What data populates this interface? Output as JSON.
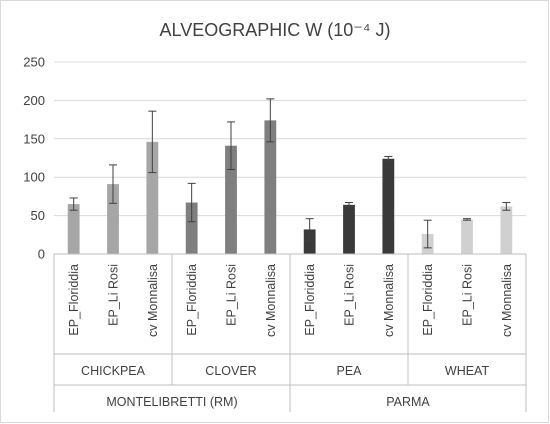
{
  "chart_data": {
    "type": "bar",
    "title": "ALVEOGRAPHIC W (10⁻⁴ J)",
    "ylim": [
      0,
      250
    ],
    "yticks": [
      0,
      50,
      100,
      150,
      200,
      250
    ],
    "grid": true,
    "legend": "none",
    "locations": [
      {
        "name": "MONTELIBRETTI (RM)",
        "species": [
          "CHICKPEA",
          "CLOVER"
        ]
      },
      {
        "name": "PARMA",
        "species": [
          "PEA",
          "WHEAT"
        ]
      }
    ],
    "groups": [
      {
        "species": "CHICKPEA",
        "color": "#a6a6a6",
        "bars": [
          {
            "label": "EP_Floriddia",
            "value": 65,
            "err_low": 57,
            "err_high": 73
          },
          {
            "label": "EP_Li Rosi",
            "value": 91,
            "err_low": 66,
            "err_high": 116
          },
          {
            "label": "cv Monnalisa",
            "value": 146,
            "err_low": 106,
            "err_high": 186
          }
        ]
      },
      {
        "species": "CLOVER",
        "color": "#7f7f7f",
        "bars": [
          {
            "label": "EP_Floriddia",
            "value": 67,
            "err_low": 42,
            "err_high": 92
          },
          {
            "label": "EP_Li Rosi",
            "value": 141,
            "err_low": 110,
            "err_high": 172
          },
          {
            "label": "cv Monnalisa",
            "value": 174,
            "err_low": 146,
            "err_high": 202
          }
        ]
      },
      {
        "species": "PEA",
        "color": "#3a3a3a",
        "bars": [
          {
            "label": "EP_Floriddia",
            "value": 32,
            "err_low": 18,
            "err_high": 46
          },
          {
            "label": "EP_Li Rosi",
            "value": 64,
            "err_low": 62,
            "err_high": 67
          },
          {
            "label": "cv Monnalisa",
            "value": 124,
            "err_low": 121,
            "err_high": 127
          }
        ]
      },
      {
        "species": "WHEAT",
        "color": "#d0d0d0",
        "bars": [
          {
            "label": "EP_Floriddia",
            "value": 26,
            "err_low": 8,
            "err_high": 44
          },
          {
            "label": "EP_Li Rosi",
            "value": 45,
            "err_low": 44,
            "err_high": 46
          },
          {
            "label": "cv Monnalisa",
            "value": 62,
            "err_low": 57,
            "err_high": 67
          }
        ]
      }
    ]
  },
  "colors": {
    "axis": "#bfbfbf",
    "grid": "#d9d9d9",
    "text": "#404040",
    "errorbar": "#404040"
  }
}
